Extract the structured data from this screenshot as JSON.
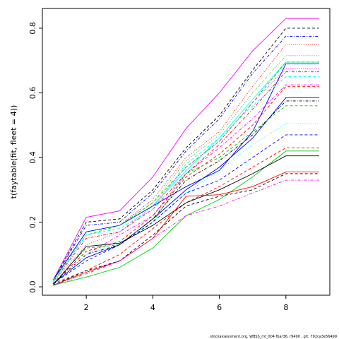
{
  "chart_data": {
    "type": "line",
    "ylabel": "t(faytable(fit, fleet = 4))",
    "footer": "stockassessment.org, WBSS_mf_004 fbar36, r9490 , git: 792ca3e56499",
    "x": [
      1,
      2,
      3,
      4,
      5,
      6,
      7,
      8,
      9
    ],
    "xlim": [
      0.68,
      9.32
    ],
    "xticks": [
      2,
      4,
      6,
      8
    ],
    "ylim": [
      -0.026,
      0.861
    ],
    "yticks": [
      {
        "value": 0,
        "label": "0.0"
      },
      {
        "value": 0.2,
        "label": "0.2"
      },
      {
        "value": 0.4,
        "label": "0.4"
      },
      {
        "value": 0.6,
        "label": "0.6"
      },
      {
        "value": 0.8,
        "label": "0.8"
      }
    ],
    "grid": false,
    "series": [
      {
        "color": "#ff00ff",
        "dash": "solid",
        "values": [
          0.02,
          0.215,
          0.235,
          0.34,
          0.49,
          0.6,
          0.73,
          0.83,
          0.83
        ]
      },
      {
        "color": "#000000",
        "dash": "dashed",
        "values": [
          0.02,
          0.2,
          0.21,
          0.3,
          0.43,
          0.53,
          0.67,
          0.8,
          0.8
        ]
      },
      {
        "color": "#0000ff",
        "dash": "dotdash",
        "values": [
          0.02,
          0.19,
          0.2,
          0.29,
          0.42,
          0.52,
          0.66,
          0.775,
          0.775
        ]
      },
      {
        "color": "#ff0000",
        "dash": "dotted",
        "values": [
          0.02,
          0.17,
          0.19,
          0.27,
          0.4,
          0.48,
          0.62,
          0.75,
          0.75
        ]
      },
      {
        "color": "#00cd00",
        "dash": "dotted",
        "values": [
          0.02,
          0.17,
          0.19,
          0.26,
          0.39,
          0.47,
          0.6,
          0.715,
          0.715
        ]
      },
      {
        "color": "#00ffff",
        "dash": "solid",
        "values": [
          0.02,
          0.17,
          0.19,
          0.25,
          0.36,
          0.46,
          0.58,
          0.695,
          0.695
        ]
      },
      {
        "color": "#0000ff",
        "dash": "solid",
        "values": [
          0.02,
          0.17,
          0.19,
          0.25,
          0.31,
          0.36,
          0.48,
          0.69,
          0.69
        ]
      },
      {
        "color": "#00cd00",
        "dash": "dashed",
        "values": [
          0.02,
          0.16,
          0.19,
          0.26,
          0.37,
          0.45,
          0.57,
          0.695,
          0.695
        ]
      },
      {
        "color": "#ff00ff",
        "dash": "dotted",
        "values": [
          0.015,
          0.13,
          0.17,
          0.25,
          0.37,
          0.45,
          0.57,
          0.675,
          0.675
        ]
      },
      {
        "color": "#ff0000",
        "dash": "dotdash",
        "values": [
          0.015,
          0.15,
          0.17,
          0.24,
          0.35,
          0.44,
          0.55,
          0.665,
          0.665
        ]
      },
      {
        "color": "#00ffff",
        "dash": "dashed",
        "values": [
          0.015,
          0.16,
          0.18,
          0.24,
          0.38,
          0.46,
          0.56,
          0.65,
          0.65
        ]
      },
      {
        "color": "#ff00ff",
        "dash": "dotdash",
        "values": [
          0.01,
          0.1,
          0.16,
          0.22,
          0.35,
          0.43,
          0.52,
          0.625,
          0.625
        ]
      },
      {
        "color": "#ff0000",
        "dash": "dashed",
        "values": [
          0.01,
          0.11,
          0.14,
          0.22,
          0.34,
          0.41,
          0.5,
          0.62,
          0.62
        ]
      },
      {
        "color": "#0000ff",
        "dash": "solid",
        "values": [
          0.01,
          0.09,
          0.13,
          0.21,
          0.3,
          0.37,
          0.46,
          0.585,
          0.585
        ]
      },
      {
        "color": "#000000",
        "dash": "dotdash",
        "values": [
          0.01,
          0.1,
          0.13,
          0.21,
          0.33,
          0.39,
          0.47,
          0.575,
          0.575
        ]
      },
      {
        "color": "#00cd00",
        "dash": "dashed",
        "values": [
          0.01,
          0.12,
          0.13,
          0.2,
          0.35,
          0.4,
          0.48,
          0.56,
          0.56
        ]
      },
      {
        "color": "#00ffff",
        "dash": "dotted",
        "values": [
          0.01,
          0.1,
          0.14,
          0.2,
          0.29,
          0.36,
          0.44,
          0.505,
          0.505
        ]
      },
      {
        "color": "#0000ff",
        "dash": "dashed",
        "values": [
          0.01,
          0.08,
          0.13,
          0.2,
          0.29,
          0.33,
          0.4,
          0.47,
          0.47
        ]
      },
      {
        "color": "#ff0000",
        "dash": "dashed",
        "values": [
          0.01,
          0.05,
          0.1,
          0.18,
          0.26,
          0.31,
          0.37,
          0.43,
          0.43
        ]
      },
      {
        "color": "#00cd00",
        "dash": "solid",
        "values": [
          0.005,
          0.03,
          0.06,
          0.12,
          0.22,
          0.27,
          0.34,
          0.42,
          0.42
        ]
      },
      {
        "color": "#000000",
        "dash": "solid",
        "values": [
          0.005,
          0.125,
          0.135,
          0.19,
          0.26,
          0.3,
          0.35,
          0.405,
          0.405
        ]
      },
      {
        "color": "#ff0000",
        "dash": "solid",
        "values": [
          0.005,
          0.045,
          0.08,
          0.15,
          0.28,
          0.285,
          0.31,
          0.355,
          0.355
        ]
      },
      {
        "color": "#000000",
        "dash": "dashed",
        "values": [
          0.005,
          0.05,
          0.08,
          0.16,
          0.25,
          0.28,
          0.3,
          0.35,
          0.35
        ]
      },
      {
        "color": "#ff00ff",
        "dash": "dotdash",
        "values": [
          0.005,
          0.04,
          0.08,
          0.15,
          0.22,
          0.25,
          0.29,
          0.33,
          0.33
        ]
      }
    ]
  }
}
